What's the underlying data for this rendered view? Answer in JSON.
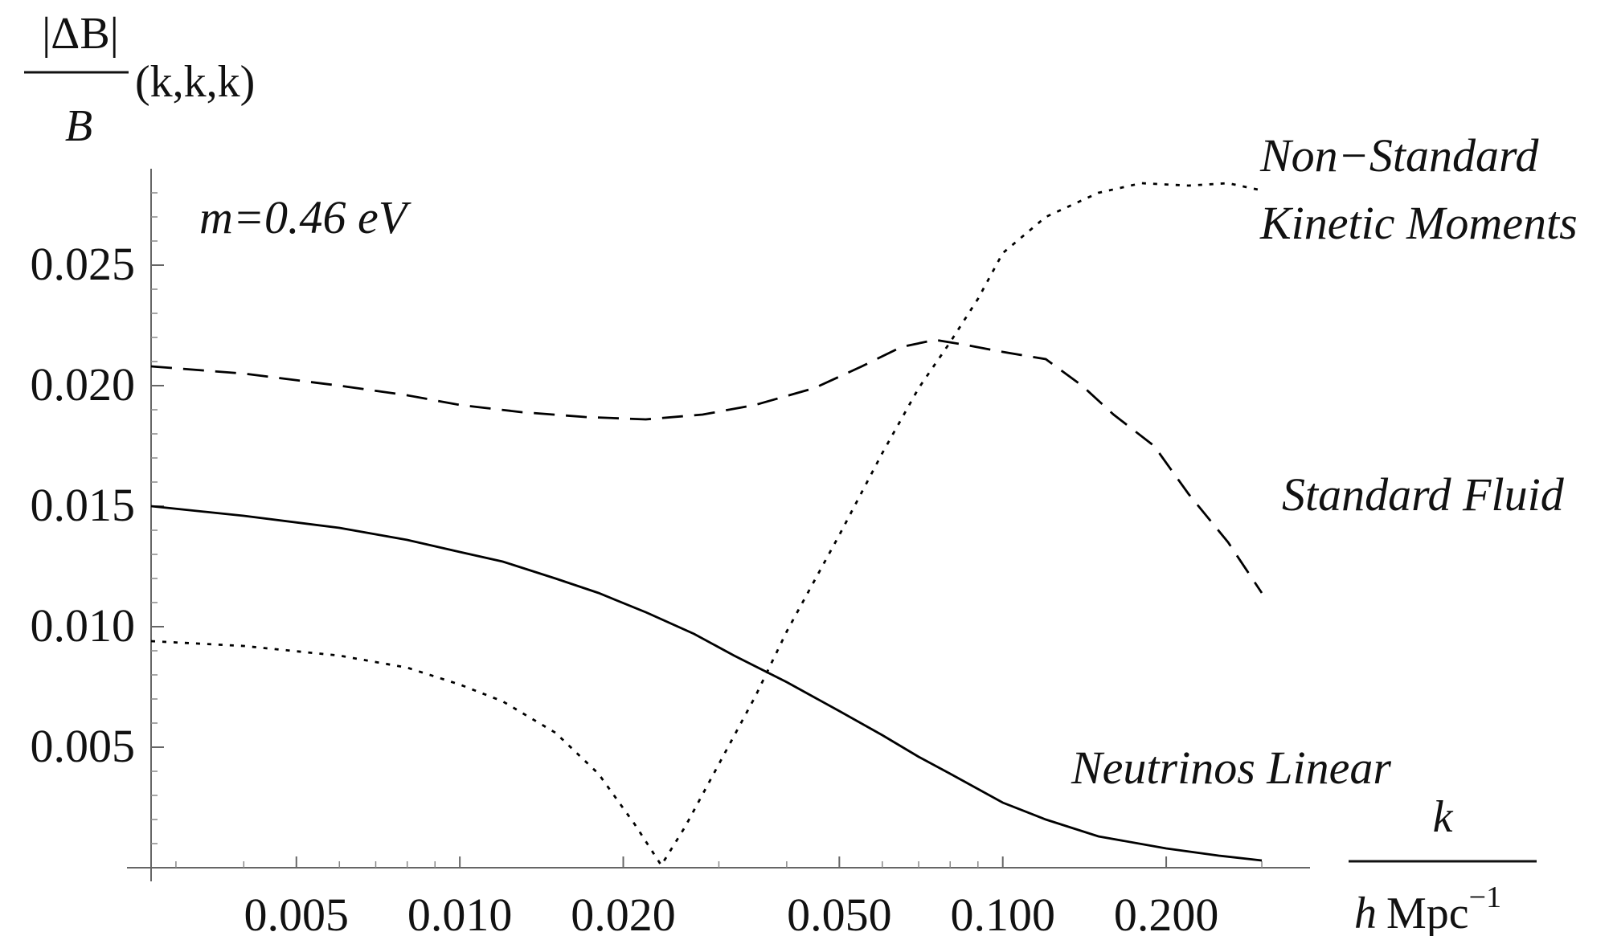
{
  "chart_data": {
    "type": "line",
    "x_scale": "log",
    "xlim": [
      0.0027,
      0.33
    ],
    "ylim": [
      0,
      0.029
    ],
    "grid": false,
    "annotation": "m=0.46 eV",
    "ylabel": {
      "numerator": "|ΔB|",
      "denominator": "B",
      "suffix": "(k,k,k)"
    },
    "xlabel": {
      "numerator": "k",
      "denominator_prefix": "h Mpc",
      "denominator_exp": "−1"
    },
    "x_ticks": [
      {
        "value": 0.005,
        "label": "0.005"
      },
      {
        "value": 0.01,
        "label": "0.010"
      },
      {
        "value": 0.02,
        "label": "0.020"
      },
      {
        "value": 0.05,
        "label": "0.050"
      },
      {
        "value": 0.1,
        "label": "0.100"
      },
      {
        "value": 0.2,
        "label": "0.200"
      }
    ],
    "y_ticks": [
      {
        "value": 0.005,
        "label": "0.005"
      },
      {
        "value": 0.01,
        "label": "0.010"
      },
      {
        "value": 0.015,
        "label": "0.015"
      },
      {
        "value": 0.02,
        "label": "0.020"
      },
      {
        "value": 0.025,
        "label": "0.025"
      }
    ],
    "series": [
      {
        "name": "Neutrinos Linear",
        "style": "solid",
        "points": [
          [
            0.0027,
            0.015
          ],
          [
            0.004,
            0.0146
          ],
          [
            0.006,
            0.0141
          ],
          [
            0.008,
            0.0136
          ],
          [
            0.01,
            0.0131
          ],
          [
            0.012,
            0.0127
          ],
          [
            0.015,
            0.012
          ],
          [
            0.018,
            0.0114
          ],
          [
            0.022,
            0.0106
          ],
          [
            0.027,
            0.0097
          ],
          [
            0.032,
            0.0088
          ],
          [
            0.04,
            0.0077
          ],
          [
            0.05,
            0.0065
          ],
          [
            0.06,
            0.0055
          ],
          [
            0.07,
            0.0046
          ],
          [
            0.08,
            0.0039
          ],
          [
            0.1,
            0.0027
          ],
          [
            0.12,
            0.002
          ],
          [
            0.15,
            0.0013
          ],
          [
            0.2,
            0.0008
          ],
          [
            0.25,
            0.0005
          ],
          [
            0.3,
            0.0003
          ]
        ]
      },
      {
        "name": "Standard Fluid",
        "style": "dashed",
        "points": [
          [
            0.0027,
            0.0208
          ],
          [
            0.004,
            0.0205
          ],
          [
            0.006,
            0.02
          ],
          [
            0.008,
            0.0196
          ],
          [
            0.01,
            0.0192
          ],
          [
            0.013,
            0.0189
          ],
          [
            0.017,
            0.0187
          ],
          [
            0.022,
            0.0186
          ],
          [
            0.028,
            0.0188
          ],
          [
            0.035,
            0.0192
          ],
          [
            0.045,
            0.0199
          ],
          [
            0.055,
            0.0208
          ],
          [
            0.065,
            0.0216
          ],
          [
            0.075,
            0.0219
          ],
          [
            0.085,
            0.0217
          ],
          [
            0.1,
            0.0214
          ],
          [
            0.12,
            0.0211
          ],
          [
            0.14,
            0.02
          ],
          [
            0.16,
            0.0188
          ],
          [
            0.19,
            0.0175
          ],
          [
            0.22,
            0.0155
          ],
          [
            0.26,
            0.0135
          ],
          [
            0.3,
            0.0114
          ]
        ]
      },
      {
        "name": "Non−Standard Kinetic Moments",
        "style": "dotted",
        "points": [
          [
            0.0027,
            0.0094
          ],
          [
            0.004,
            0.0092
          ],
          [
            0.006,
            0.0088
          ],
          [
            0.008,
            0.0083
          ],
          [
            0.01,
            0.0076
          ],
          [
            0.012,
            0.0069
          ],
          [
            0.015,
            0.0056
          ],
          [
            0.018,
            0.0039
          ],
          [
            0.021,
            0.0018
          ],
          [
            0.0235,
            0.0001
          ],
          [
            0.026,
            0.0017
          ],
          [
            0.03,
            0.0043
          ],
          [
            0.035,
            0.0071
          ],
          [
            0.04,
            0.0098
          ],
          [
            0.05,
            0.0138
          ],
          [
            0.06,
            0.0172
          ],
          [
            0.07,
            0.0199
          ],
          [
            0.08,
            0.0218
          ],
          [
            0.09,
            0.0236
          ],
          [
            0.1,
            0.0255
          ],
          [
            0.12,
            0.027
          ],
          [
            0.15,
            0.028
          ],
          [
            0.18,
            0.0284
          ],
          [
            0.22,
            0.0283
          ],
          [
            0.26,
            0.0284
          ],
          [
            0.3,
            0.0281
          ]
        ]
      }
    ],
    "series_labels": {
      "neutrinos": "Neutrinos Linear",
      "fluid": "Standard Fluid",
      "nonstd_line1": "Non−Standard",
      "nonstd_line2": "Kinetic Moments"
    }
  }
}
